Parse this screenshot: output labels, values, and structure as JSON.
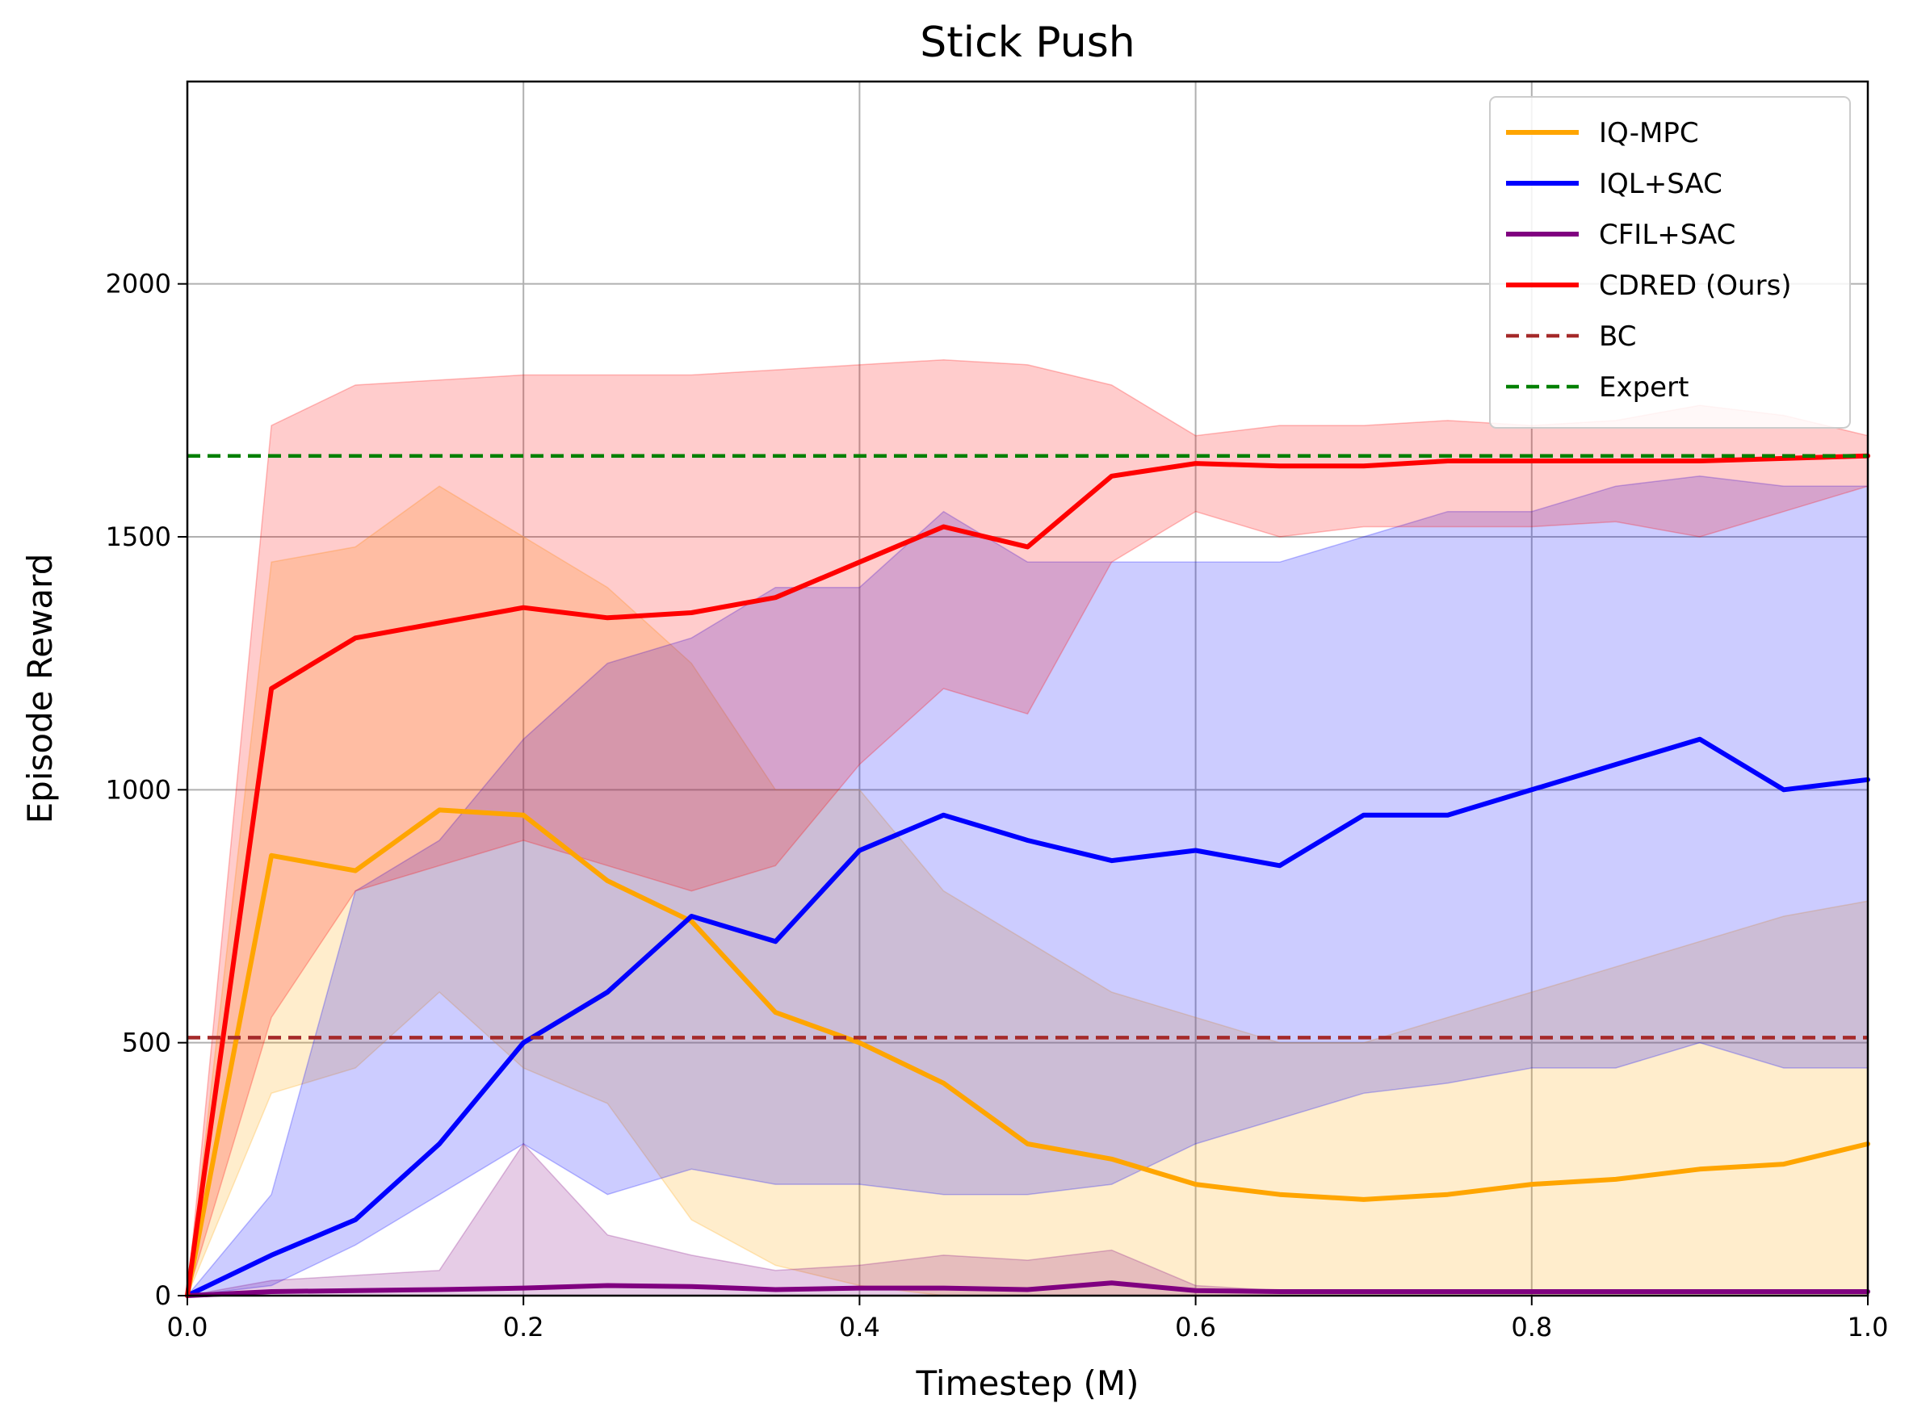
{
  "chart_data": {
    "type": "line",
    "title": "Stick Push",
    "xlabel": "Timestep (M)",
    "ylabel": "Episode Reward",
    "xlim": [
      0,
      1.0
    ],
    "ylim": [
      0,
      2400
    ],
    "xticks": [
      0.0,
      0.2,
      0.4,
      0.6,
      0.8,
      1.0
    ],
    "xtick_labels": [
      "0.0",
      "0.2",
      "0.4",
      "0.6",
      "0.8",
      "1.0"
    ],
    "yticks": [
      0,
      500,
      1000,
      1500,
      2000
    ],
    "ytick_labels": [
      "0",
      "500",
      "1000",
      "1500",
      "2000"
    ],
    "grid": true,
    "legend_position": "top-right",
    "x": [
      0.0,
      0.05,
      0.1,
      0.15,
      0.2,
      0.25,
      0.3,
      0.35,
      0.4,
      0.45,
      0.5,
      0.55,
      0.6,
      0.65,
      0.7,
      0.75,
      0.8,
      0.85,
      0.9,
      0.95,
      1.0
    ],
    "series": [
      {
        "name": "IQ-MPC",
        "color": "#ffa500",
        "style": "solid",
        "mean": [
          0,
          870,
          840,
          960,
          950,
          820,
          740,
          560,
          500,
          420,
          300,
          270,
          220,
          200,
          190,
          200,
          220,
          230,
          250,
          260,
          300
        ],
        "lower": [
          0,
          400,
          450,
          600,
          450,
          380,
          150,
          60,
          20,
          0,
          0,
          0,
          0,
          0,
          0,
          0,
          0,
          0,
          0,
          0,
          0
        ],
        "upper": [
          0,
          1450,
          1480,
          1600,
          1500,
          1400,
          1250,
          1000,
          1000,
          800,
          700,
          600,
          550,
          500,
          500,
          550,
          600,
          650,
          700,
          750,
          780
        ]
      },
      {
        "name": "IQL+SAC",
        "color": "#0000ff",
        "style": "solid",
        "mean": [
          0,
          80,
          150,
          300,
          500,
          600,
          750,
          700,
          880,
          950,
          900,
          860,
          880,
          850,
          950,
          950,
          1000,
          1050,
          1100,
          1000,
          1020
        ],
        "lower": [
          0,
          20,
          100,
          200,
          300,
          200,
          250,
          220,
          220,
          200,
          200,
          220,
          300,
          350,
          400,
          420,
          450,
          450,
          500,
          450,
          450
        ],
        "upper": [
          0,
          200,
          800,
          900,
          1100,
          1250,
          1300,
          1400,
          1400,
          1550,
          1450,
          1450,
          1450,
          1450,
          1500,
          1550,
          1550,
          1600,
          1620,
          1600,
          1600
        ]
      },
      {
        "name": "CFIL+SAC",
        "color": "#800080",
        "style": "solid",
        "mean": [
          0,
          8,
          10,
          12,
          15,
          20,
          18,
          12,
          15,
          15,
          12,
          25,
          10,
          8,
          8,
          8,
          8,
          8,
          8,
          8,
          8
        ],
        "lower": [
          0,
          0,
          0,
          0,
          0,
          0,
          0,
          0,
          0,
          0,
          0,
          0,
          0,
          0,
          0,
          0,
          0,
          0,
          0,
          0,
          0
        ],
        "upper": [
          0,
          30,
          40,
          50,
          300,
          120,
          80,
          50,
          60,
          80,
          70,
          90,
          20,
          10,
          10,
          10,
          10,
          10,
          10,
          10,
          10
        ]
      },
      {
        "name": "CDRED (Ours)",
        "color": "#ff0000",
        "style": "solid",
        "mean": [
          0,
          1200,
          1300,
          1330,
          1360,
          1340,
          1350,
          1380,
          1450,
          1520,
          1480,
          1620,
          1645,
          1640,
          1640,
          1650,
          1650,
          1650,
          1650,
          1655,
          1660
        ],
        "lower": [
          0,
          550,
          800,
          850,
          900,
          850,
          800,
          850,
          1050,
          1200,
          1150,
          1450,
          1550,
          1500,
          1520,
          1520,
          1520,
          1530,
          1500,
          1550,
          1600
        ],
        "upper": [
          0,
          1720,
          1800,
          1810,
          1820,
          1820,
          1820,
          1830,
          1840,
          1850,
          1840,
          1800,
          1700,
          1720,
          1720,
          1730,
          1720,
          1730,
          1760,
          1740,
          1700
        ]
      },
      {
        "name": "BC",
        "color": "#a52a2a",
        "style": "dashed",
        "constant": 510
      },
      {
        "name": "Expert",
        "color": "#008000",
        "style": "dashed",
        "constant": 1660
      }
    ]
  }
}
